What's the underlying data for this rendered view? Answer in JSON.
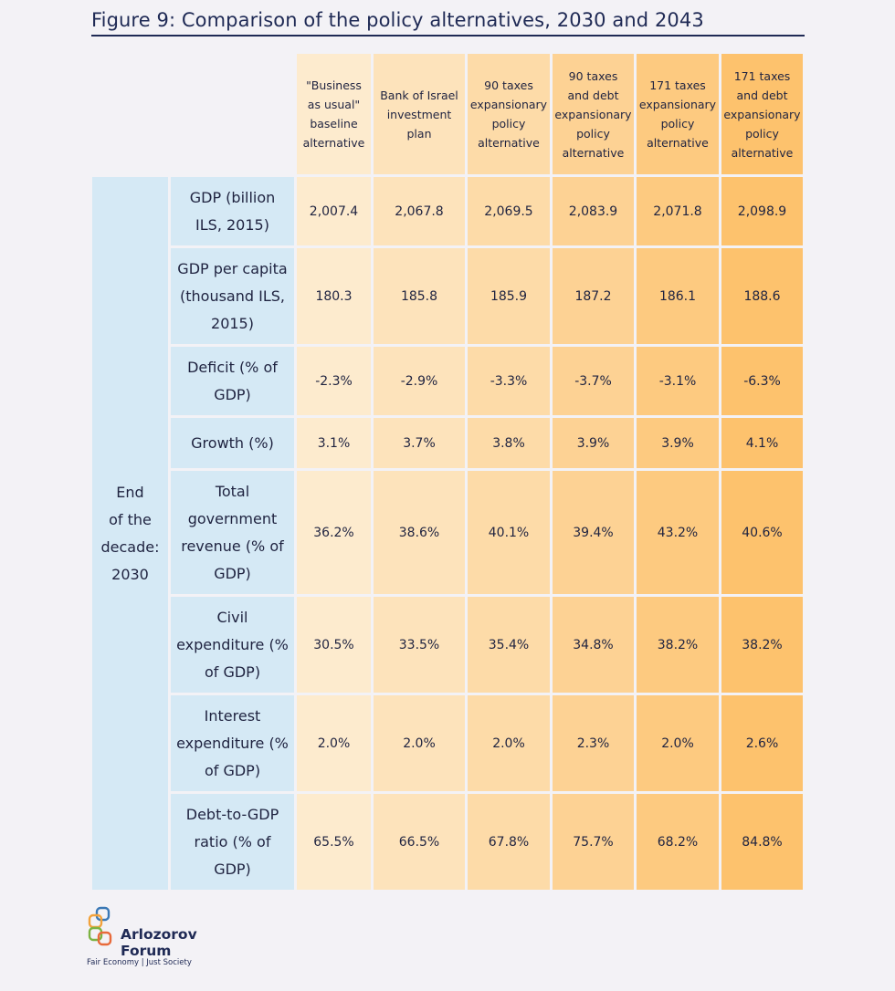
{
  "title": "Figure 9: Comparison of the policy alternatives, 2030 and 2043",
  "chart_data": {
    "type": "table",
    "title": "Figure 9: Comparison of the policy alternatives, 2030 and 2043",
    "section_label": [
      "End",
      "of the",
      "decade:",
      "2030"
    ],
    "columns": [
      {
        "label": [
          "\"Business",
          "as usual\"",
          "baseline",
          "alternative"
        ],
        "color": "#fdebce"
      },
      {
        "label": [
          "Bank of Israel",
          "investment",
          "plan"
        ],
        "color": "#fde3bb"
      },
      {
        "label": [
          "90 taxes",
          "expansionary",
          "policy",
          "alternative"
        ],
        "color": "#fddba8"
      },
      {
        "label": [
          "90 taxes",
          "and debt",
          "expansionary",
          "policy",
          "alternative"
        ],
        "color": "#fdd294"
      },
      {
        "label": [
          "171 taxes",
          "expansionary",
          "policy",
          "alternative"
        ],
        "color": "#fdca80"
      },
      {
        "label": [
          "171 taxes",
          "and debt",
          "expansionary",
          "policy",
          "alternative"
        ],
        "color": "#fdc26d"
      }
    ],
    "rows": [
      {
        "label": [
          "GDP (billion",
          "ILS, 2015)"
        ],
        "values": [
          "2,007.4",
          "2,067.8",
          "2,069.5",
          "2,083.9",
          "2,071.8",
          "2,098.9"
        ]
      },
      {
        "label": [
          "GDP per capita",
          "(thousand ILS,",
          "2015)"
        ],
        "values": [
          "180.3",
          "185.8",
          "185.9",
          "187.2",
          "186.1",
          "188.6"
        ]
      },
      {
        "label": [
          "Deficit (% of",
          "GDP)"
        ],
        "values": [
          "-2.3%",
          "-2.9%",
          "-3.3%",
          "-3.7%",
          "-3.1%",
          "-6.3%"
        ]
      },
      {
        "label": [
          "Growth (%)"
        ],
        "values": [
          "3.1%",
          "3.7%",
          "3.8%",
          "3.9%",
          "3.9%",
          "4.1%"
        ]
      },
      {
        "label": [
          "Total",
          "government",
          "revenue (% of",
          "GDP)"
        ],
        "values": [
          "36.2%",
          "38.6%",
          "40.1%",
          "39.4%",
          "43.2%",
          "40.6%"
        ]
      },
      {
        "label": [
          "Civil",
          "expenditure (%",
          "of GDP)"
        ],
        "values": [
          "30.5%",
          "33.5%",
          "35.4%",
          "34.8%",
          "38.2%",
          "38.2%"
        ]
      },
      {
        "label": [
          "Interest",
          "expenditure (%",
          "of GDP)"
        ],
        "values": [
          "2.0%",
          "2.0%",
          "2.0%",
          "2.3%",
          "2.0%",
          "2.6%"
        ]
      },
      {
        "label": [
          "Debt-to-GDP",
          "ratio (% of",
          "GDP)"
        ],
        "values": [
          "65.5%",
          "66.5%",
          "67.8%",
          "75.7%",
          "68.2%",
          "84.8%"
        ]
      }
    ]
  },
  "logo": {
    "name_line1": "Arlozorov",
    "name_line2": "Forum",
    "tagline": "Fair Economy | Just Society",
    "colors": [
      "#3a78b5",
      "#f2a23b",
      "#7cb342",
      "#e86a3a"
    ]
  }
}
